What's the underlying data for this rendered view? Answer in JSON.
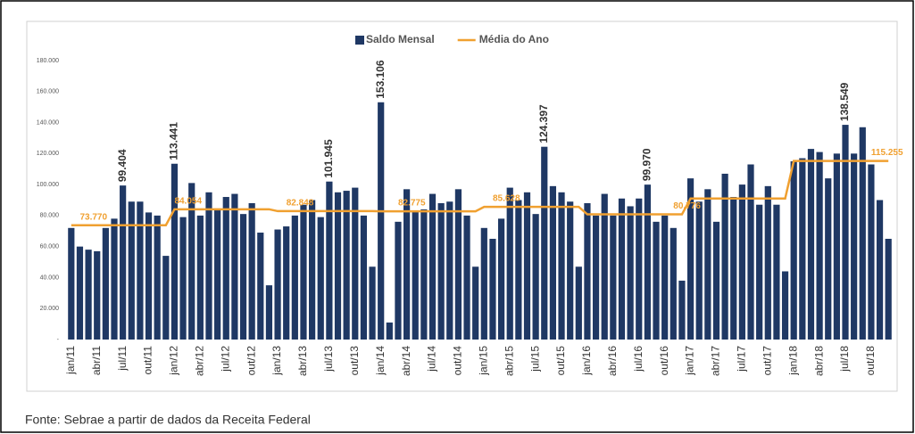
{
  "chart_data": {
    "type": "bar+line",
    "categories": [
      "jan/11",
      null,
      null,
      "abr/11",
      null,
      null,
      "jul/11",
      null,
      null,
      "out/11",
      null,
      null,
      "jan/12",
      null,
      null,
      "abr/12",
      null,
      null,
      "jul/12",
      null,
      null,
      "out/12",
      null,
      null,
      "jan/13",
      null,
      null,
      "abr/13",
      null,
      null,
      "jul/13",
      null,
      null,
      "out/13",
      null,
      null,
      "jan/14",
      null,
      null,
      "abr/14",
      null,
      null,
      "jul/14",
      null,
      null,
      "out/14",
      null,
      null,
      "jan/15",
      null,
      null,
      "abr/15",
      null,
      null,
      "jul/15",
      null,
      null,
      "out/15",
      null,
      null,
      "jan/16",
      null,
      null,
      "abr/16",
      null,
      null,
      "jul/16",
      null,
      null,
      "out/16",
      null,
      null,
      "jan/17",
      null,
      null,
      "abr/17",
      null,
      null,
      "jul/17",
      null,
      null,
      "out/17",
      null,
      null,
      "jan/18",
      null,
      null,
      "abr/18",
      null,
      null,
      "jul/18",
      null,
      null,
      "out/18",
      null,
      null
    ],
    "series": [
      {
        "name": "Saldo Mensal",
        "type": "bar",
        "color": "#1f3864",
        "values": [
          72000,
          60000,
          58000,
          57000,
          72000,
          78000,
          99404,
          89000,
          89000,
          82000,
          80000,
          54000,
          113441,
          79000,
          101000,
          80000,
          95000,
          84000,
          92000,
          94000,
          81000,
          88000,
          69000,
          35000,
          71000,
          73000,
          80000,
          87000,
          90000,
          79000,
          101945,
          95000,
          96000,
          98000,
          80000,
          47000,
          153106,
          11000,
          76000,
          97000,
          83000,
          84000,
          94000,
          88000,
          89000,
          97000,
          80000,
          47000,
          72000,
          65000,
          78000,
          98000,
          90000,
          95000,
          81000,
          124397,
          99000,
          95000,
          89000,
          47000,
          88000,
          80000,
          94000,
          80000,
          91000,
          86000,
          91000,
          99970,
          76000,
          80000,
          72000,
          38000,
          104000,
          89000,
          97000,
          76000,
          107000,
          92000,
          100000,
          113000,
          87000,
          99000,
          87000,
          44000,
          115000,
          117000,
          123000,
          121000,
          104000,
          120000,
          138549,
          120000,
          137000,
          113000,
          90000,
          65000
        ],
        "value_labels": [
          null,
          null,
          null,
          null,
          null,
          null,
          "99.404",
          null,
          null,
          null,
          null,
          null,
          "113.441",
          null,
          null,
          null,
          null,
          null,
          null,
          null,
          null,
          null,
          null,
          null,
          null,
          null,
          null,
          null,
          null,
          null,
          "101.945",
          null,
          null,
          null,
          null,
          null,
          "153.106",
          null,
          null,
          null,
          null,
          null,
          null,
          null,
          null,
          null,
          null,
          null,
          null,
          null,
          null,
          null,
          null,
          null,
          null,
          "124.397",
          null,
          null,
          null,
          null,
          null,
          null,
          null,
          null,
          null,
          null,
          null,
          "99.970",
          null,
          null,
          null,
          null,
          null,
          null,
          null,
          null,
          null,
          null,
          null,
          null,
          null,
          null,
          null,
          null,
          null,
          null,
          null,
          null,
          null,
          null,
          "138.549",
          null,
          null,
          null,
          null,
          null
        ]
      },
      {
        "name": "Média do Ano",
        "type": "line",
        "color": "#f0a030",
        "values": [
          73770,
          73770,
          73770,
          73770,
          73770,
          73770,
          73770,
          73770,
          73770,
          73770,
          73770,
          73770,
          84054,
          84054,
          84054,
          84054,
          84054,
          84054,
          84054,
          84054,
          84054,
          84054,
          84054,
          84054,
          82848,
          82848,
          82848,
          82848,
          82848,
          82848,
          82848,
          82848,
          82848,
          82848,
          82848,
          82848,
          82775,
          82775,
          82775,
          82775,
          82775,
          82775,
          82775,
          82775,
          82775,
          82775,
          82775,
          82775,
          85628,
          85628,
          85628,
          85628,
          85628,
          85628,
          85628,
          85628,
          85628,
          85628,
          85628,
          85628,
          80776,
          80776,
          80776,
          80776,
          80776,
          80776,
          80776,
          80776,
          80776,
          80776,
          80776,
          80776,
          91000,
          91000,
          91000,
          91000,
          91000,
          91000,
          91000,
          91000,
          91000,
          91000,
          91000,
          91000,
          115255,
          115255,
          115255,
          115255,
          115255,
          115255,
          115255,
          115255,
          115255,
          115255,
          115255,
          115255
        ],
        "value_labels": [
          null,
          "73.770",
          null,
          null,
          null,
          null,
          null,
          null,
          null,
          null,
          null,
          null,
          "84.054",
          null,
          null,
          null,
          null,
          null,
          null,
          null,
          null,
          null,
          null,
          null,
          null,
          "82.848",
          null,
          null,
          null,
          null,
          null,
          null,
          null,
          null,
          null,
          null,
          null,
          null,
          "82.775",
          null,
          null,
          null,
          null,
          null,
          null,
          null,
          null,
          null,
          null,
          "85.628",
          null,
          null,
          null,
          null,
          null,
          null,
          null,
          null,
          null,
          null,
          null,
          null,
          null,
          null,
          null,
          null,
          null,
          null,
          null,
          null,
          "80.776",
          null,
          null,
          null,
          null,
          null,
          null,
          null,
          null,
          null,
          null,
          null,
          null,
          null,
          null,
          null,
          null,
          null,
          null,
          null,
          null,
          null,
          null,
          "115.255",
          null,
          null
        ]
      }
    ],
    "ylim": [
      0,
      180000
    ],
    "yticks": [
      {
        "value": 0,
        "label": "-"
      },
      {
        "value": 20000,
        "label": "20.000"
      },
      {
        "value": 40000,
        "label": "40.000"
      },
      {
        "value": 60000,
        "label": "60.000"
      },
      {
        "value": 80000,
        "label": "80.000"
      },
      {
        "value": 100000,
        "label": "100.000"
      },
      {
        "value": 120000,
        "label": "120.000"
      },
      {
        "value": 140000,
        "label": "140.000"
      },
      {
        "value": 160000,
        "label": "160.000"
      },
      {
        "value": 180000,
        "label": "180.000"
      }
    ],
    "legend": "top",
    "grid": false
  },
  "source": "Fonte: Sebrae a partir de dados da Receita Federal"
}
